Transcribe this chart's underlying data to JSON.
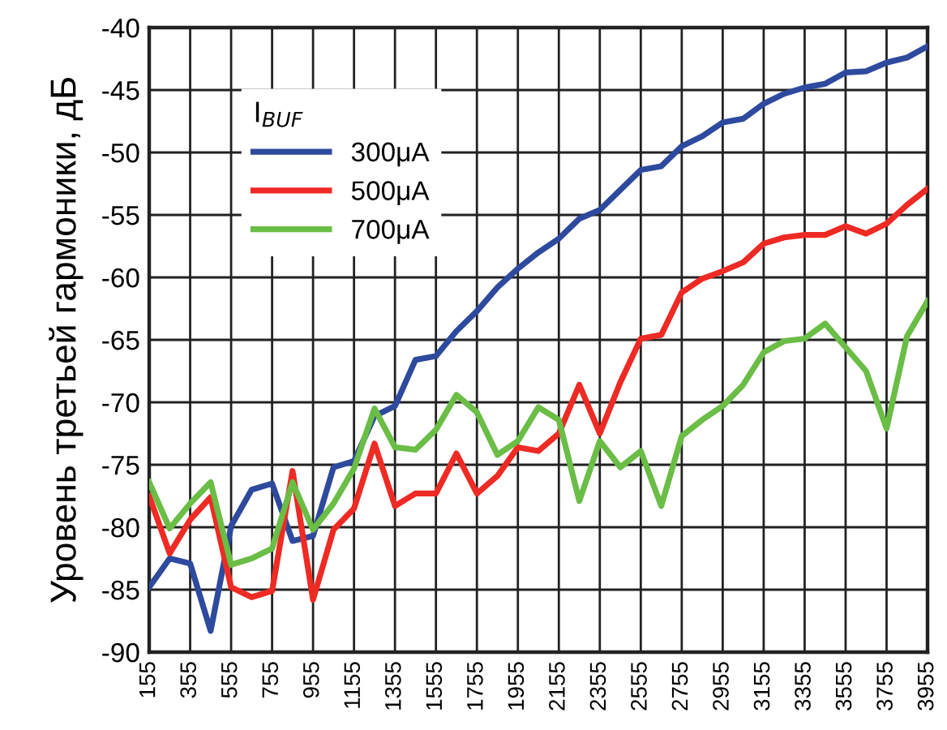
{
  "chart_data": {
    "type": "line",
    "ylabel": "Уровень третьей гармоники, дБ",
    "legend_title": "I$_{BUF}$",
    "x": [
      155,
      255,
      355,
      455,
      555,
      655,
      755,
      855,
      955,
      1055,
      1155,
      1255,
      1355,
      1455,
      1555,
      1655,
      1755,
      1855,
      1955,
      2055,
      2155,
      2255,
      2355,
      2455,
      2555,
      2655,
      2755,
      2855,
      2955,
      3055,
      3155,
      3255,
      3355,
      3455,
      3555,
      3655,
      3755,
      3855,
      3955
    ],
    "series": [
      {
        "name": "300μA",
        "color": "#2e4a9e",
        "values": [
          -84.8,
          -82.5,
          -82.9,
          -88.3,
          -79.9,
          -77.0,
          -76.5,
          -81.1,
          -80.7,
          -75.2,
          -74.7,
          -71.1,
          -70.3,
          -66.6,
          -66.3,
          -64.3,
          -62.7,
          -60.8,
          -59.3,
          -58.0,
          -56.9,
          -55.3,
          -54.6,
          -53.0,
          -51.4,
          -51.1,
          -49.5,
          -48.7,
          -47.6,
          -47.3,
          -46.1,
          -45.3,
          -44.8,
          -44.5,
          -43.6,
          -43.5,
          -42.8,
          -42.4,
          -41.5
        ]
      },
      {
        "name": "500μA",
        "color": "#ee2a24",
        "values": [
          -77.5,
          -82.1,
          -79.4,
          -77.6,
          -84.8,
          -85.6,
          -85.1,
          -75.5,
          -85.8,
          -80.2,
          -78.5,
          -73.3,
          -78.3,
          -77.3,
          -77.3,
          -74.1,
          -77.3,
          -75.9,
          -73.6,
          -73.9,
          -72.5,
          -68.6,
          -72.5,
          -68.4,
          -64.9,
          -64.6,
          -61.2,
          -60.1,
          -59.5,
          -58.8,
          -57.3,
          -56.8,
          -56.6,
          -56.6,
          -55.9,
          -56.5,
          -55.7,
          -54.2,
          -52.9
        ]
      },
      {
        "name": "700μA",
        "color": "#6abd45",
        "values": [
          -76.4,
          -80.1,
          -78.1,
          -76.4,
          -83.0,
          -82.5,
          -81.7,
          -76.4,
          -80.2,
          -78.1,
          -75.3,
          -70.5,
          -73.6,
          -73.8,
          -72.2,
          -69.4,
          -70.8,
          -74.2,
          -73.1,
          -70.4,
          -71.4,
          -77.9,
          -73.1,
          -75.2,
          -73.9,
          -78.3,
          -72.7,
          -71.4,
          -70.3,
          -68.6,
          -66.0,
          -65.1,
          -64.9,
          -63.7,
          -65.6,
          -67.5,
          -72.1,
          -64.7,
          -61.9
        ]
      }
    ],
    "xlim": [
      155,
      3955
    ],
    "xticks": [
      155,
      355,
      555,
      755,
      955,
      1155,
      1355,
      1555,
      1755,
      1955,
      2155,
      2355,
      2555,
      2755,
      2955,
      3155,
      3355,
      3555,
      3755,
      3955
    ],
    "ylim": [
      -90,
      -40
    ],
    "yticks": [
      -90,
      -85,
      -80,
      -75,
      -70,
      -65,
      -60,
      -55,
      -50,
      -45,
      -40
    ],
    "grid": true,
    "legend": "top left",
    "marker": "none",
    "line_style": "solid"
  }
}
